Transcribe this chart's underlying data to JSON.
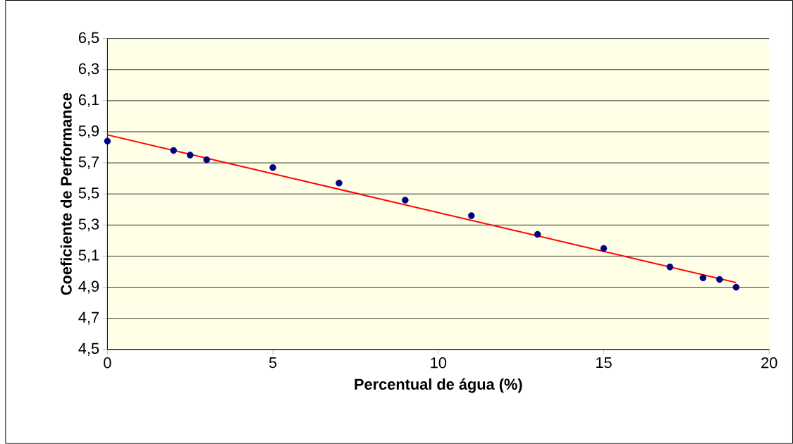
{
  "chart_data": {
    "type": "scatter",
    "xlabel": "Percentual de água (%)",
    "ylabel": "Coeficiente de Performance",
    "xlim": [
      0,
      20
    ],
    "xticks": [
      0,
      5,
      10,
      15,
      20
    ],
    "ylim": [
      4.5,
      6.5
    ],
    "yticks": [
      {
        "value": 4.5,
        "label": "4,5"
      },
      {
        "value": 4.7,
        "label": "4,7"
      },
      {
        "value": 4.9,
        "label": "4,9"
      },
      {
        "value": 5.1,
        "label": "5,1"
      },
      {
        "value": 5.3,
        "label": "5,3"
      },
      {
        "value": 5.5,
        "label": "5,5"
      },
      {
        "value": 5.7,
        "label": "5,7"
      },
      {
        "value": 5.9,
        "label": "5,9"
      },
      {
        "value": 6.1,
        "label": "6,1"
      },
      {
        "value": 6.3,
        "label": "6,3"
      },
      {
        "value": 6.5,
        "label": "6,5"
      }
    ],
    "grid": "y",
    "series": [
      {
        "type": "scatter",
        "color": "#000080",
        "marker": "circle",
        "x": [
          0,
          2,
          2.5,
          3,
          5,
          7,
          9,
          11,
          13,
          15,
          17,
          18,
          18.5,
          19
        ],
        "values": [
          5.84,
          5.78,
          5.75,
          5.72,
          5.67,
          5.57,
          5.46,
          5.36,
          5.24,
          5.15,
          5.03,
          4.96,
          4.95,
          4.9
        ]
      },
      {
        "type": "line",
        "color": "#ff0000",
        "marker": "none",
        "x": [
          0,
          19
        ],
        "values": [
          5.88,
          4.93
        ]
      }
    ]
  }
}
